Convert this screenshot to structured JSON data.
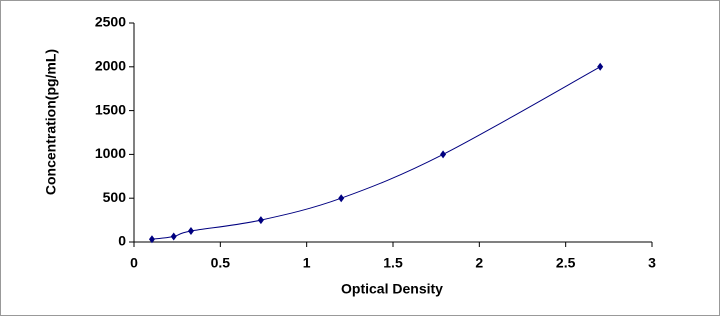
{
  "chart_data": {
    "type": "scatter",
    "x_label": "Optical Density",
    "y_label": "Concentration(pg/mL)",
    "x": [
      0.104,
      0.23,
      0.33,
      0.735,
      1.2,
      1.79,
      2.7
    ],
    "y": [
      31.25,
      62.5,
      125,
      250,
      500,
      1000,
      2000
    ],
    "color": "#000080",
    "smooth_line": true,
    "xlim": [
      0,
      3
    ],
    "xticks": [
      0,
      0.5,
      1,
      1.5,
      2,
      2.5,
      3
    ],
    "ylim": [
      0,
      2500
    ],
    "yticks": [
      0,
      500,
      1000,
      1500,
      2000,
      2500
    ],
    "grid": false
  }
}
